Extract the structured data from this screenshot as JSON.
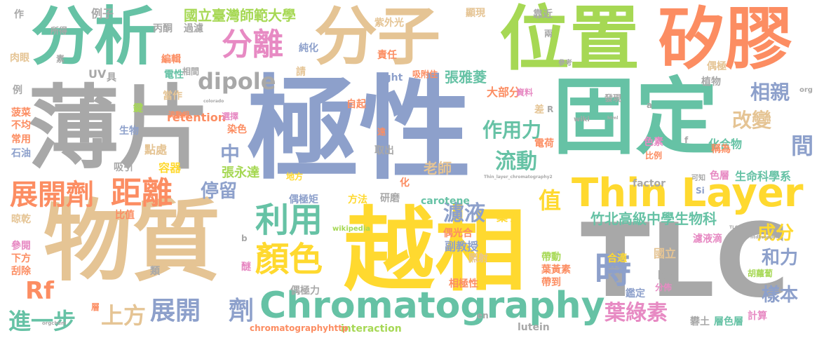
{
  "palette": {
    "grey": "#a8a8a8",
    "blue": "#8da0cb",
    "green": "#66c2a5",
    "orange": "#fc8d62",
    "pink": "#e78ac3",
    "lime": "#a6d854",
    "yellow": "#ffd92f",
    "tan": "#e5c494"
  },
  "words": [
    {
      "text": "極性"
    },
    {
      "text": "薄片"
    },
    {
      "text": "物質"
    },
    {
      "text": "越相"
    },
    {
      "text": "固定"
    },
    {
      "text": "分析"
    },
    {
      "text": "分子"
    },
    {
      "text": "位置"
    },
    {
      "text": "矽膠"
    },
    {
      "text": "TLC"
    },
    {
      "text": "Thin Layer"
    },
    {
      "text": "Chromatography"
    },
    {
      "text": "時"
    },
    {
      "text": "分離"
    },
    {
      "text": "dipole"
    },
    {
      "text": "展開劑"
    },
    {
      "text": "距離"
    },
    {
      "text": "利用"
    },
    {
      "text": "顏色"
    },
    {
      "text": "Rf"
    },
    {
      "text": "展開"
    },
    {
      "text": "劑"
    },
    {
      "text": "進一步"
    },
    {
      "text": "上方"
    },
    {
      "text": "葉綠素"
    },
    {
      "text": "濾液"
    },
    {
      "text": "流動"
    },
    {
      "text": "作用力"
    },
    {
      "text": "改變"
    },
    {
      "text": "間"
    },
    {
      "text": "相親"
    },
    {
      "text": "和力"
    },
    {
      "text": "樣本"
    },
    {
      "text": "成分"
    },
    {
      "text": "值"
    },
    {
      "text": "停留"
    },
    {
      "text": "中"
    },
    {
      "text": "國立臺灣師範大學"
    },
    {
      "text": "竹北高級中學生物科"
    },
    {
      "text": "張雅菱"
    },
    {
      "text": "張永達"
    },
    {
      "text": "老師"
    },
    {
      "text": "副教授"
    },
    {
      "text": "葉子"
    },
    {
      "text": "生命科學系"
    },
    {
      "text": "化合物"
    },
    {
      "text": "大部分"
    },
    {
      "text": "染色"
    },
    {
      "text": "點處"
    },
    {
      "text": "容器"
    },
    {
      "text": "retention"
    },
    {
      "text": "factor"
    },
    {
      "text": "interaction"
    },
    {
      "text": "carotene"
    },
    {
      "text": "light"
    },
    {
      "text": "lutein"
    },
    {
      "text": "wikipedia"
    },
    {
      "text": "chromatographyhttp"
    },
    {
      "text": "例子"
    },
    {
      "text": "作"
    },
    {
      "text": "所得"
    },
    {
      "text": "丙酮"
    },
    {
      "text": "過濾"
    },
    {
      "text": "紫外光"
    },
    {
      "text": "顯現"
    },
    {
      "text": "靠近"
    },
    {
      "text": "兩"
    },
    {
      "text": "參考"
    },
    {
      "text": "肉眼"
    },
    {
      "text": "素"
    },
    {
      "text": "UV"
    },
    {
      "text": "具"
    },
    {
      "text": "編輯"
    },
    {
      "text": "電性"
    },
    {
      "text": "相間"
    },
    {
      "text": "請"
    },
    {
      "text": "純化"
    },
    {
      "text": "責任"
    },
    {
      "text": "吸附住"
    },
    {
      "text": "植物"
    },
    {
      "text": "偶極"
    },
    {
      "text": "例"
    },
    {
      "text": "當作"
    },
    {
      "text": "流動相"
    },
    {
      "text": "自起"
    },
    {
      "text": "資料"
    },
    {
      "text": "發現"
    },
    {
      "text": "鍵"
    },
    {
      "text": "菠菜"
    },
    {
      "text": "不均"
    },
    {
      "text": "常用"
    },
    {
      "text": "石油"
    },
    {
      "text": "生物"
    },
    {
      "text": "吸引"
    },
    {
      "text": "選擇"
    },
    {
      "text": "電荷"
    },
    {
      "text": "差"
    },
    {
      "text": "R"
    },
    {
      "text": "wiki"
    },
    {
      "text": "色素"
    },
    {
      "text": "比例"
    },
    {
      "text": "稱為"
    },
    {
      "text": "地方"
    },
    {
      "text": "取出"
    },
    {
      "text": "遠"
    },
    {
      "text": "化"
    },
    {
      "text": "研磨"
    },
    {
      "text": "方法"
    },
    {
      "text": "色層"
    },
    {
      "text": "可知"
    },
    {
      "text": "Si"
    },
    {
      "text": "比值"
    },
    {
      "text": "晾乾"
    },
    {
      "text": "偶極矩"
    },
    {
      "text": "偶光合"
    },
    {
      "text": "參閱"
    },
    {
      "text": "下方"
    },
    {
      "text": "刮除"
    },
    {
      "text": "類"
    },
    {
      "text": "醚"
    },
    {
      "text": "照射"
    },
    {
      "text": "帶動"
    },
    {
      "text": "合適"
    },
    {
      "text": "國立"
    },
    {
      "text": "葉黃素"
    },
    {
      "text": "合物"
    },
    {
      "text": "帶到"
    },
    {
      "text": "開來"
    },
    {
      "text": "鑑定"
    },
    {
      "text": "分佈"
    },
    {
      "text": "濾液滴"
    },
    {
      "text": "相極性"
    },
    {
      "text": "偶極力"
    },
    {
      "text": "胡蘿蔔"
    },
    {
      "text": "計算"
    },
    {
      "text": "層"
    },
    {
      "text": "en"
    },
    {
      "text": "礬土"
    },
    {
      "text": "層色層"
    },
    {
      "text": "b"
    },
    {
      "text": "a"
    },
    {
      "text": "f"
    },
    {
      "text": "org"
    },
    {
      "text": "Thin_layer_chromatography2"
    },
    {
      "text": "orgchem"
    },
    {
      "text": "TLChttp"
    },
    {
      "text": "colorado"
    },
    {
      "text": "html"
    },
    {
      "text": "ntdbsupport"
    }
  ]
}
